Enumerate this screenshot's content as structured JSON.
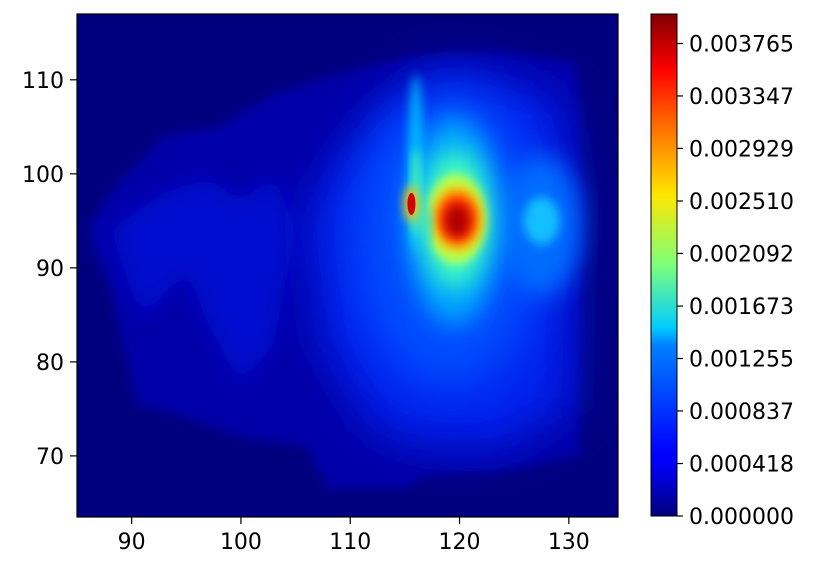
{
  "chart_data": {
    "type": "heatmap",
    "subtype": "filled-contour",
    "colormap": "jet",
    "title": "",
    "xlabel": "",
    "ylabel": "",
    "xlim": [
      85,
      134.5
    ],
    "ylim": [
      63.5,
      117
    ],
    "x_ticks": [
      90,
      100,
      110,
      120,
      130
    ],
    "y_ticks": [
      70,
      80,
      90,
      100,
      110
    ],
    "x_tick_labels": [
      "90",
      "100",
      "110",
      "120",
      "130"
    ],
    "y_tick_labels": [
      "70",
      "80",
      "90",
      "100",
      "110"
    ],
    "colorbar": {
      "min": 0.0,
      "max": 0.004,
      "ticks": [
        0.0,
        0.000418,
        0.000837,
        0.001255,
        0.001673,
        0.002092,
        0.00251,
        0.002929,
        0.003347,
        0.003765
      ],
      "tick_labels": [
        "0.000000",
        "0.000418",
        "0.000837",
        "0.001255",
        "0.001673",
        "0.002092",
        "0.002510",
        "0.002929",
        "0.003347",
        "0.003765"
      ]
    },
    "data_extent": {
      "x": [
        86,
        131
      ],
      "y": [
        66.5,
        113
      ]
    },
    "peaks": [
      {
        "x": 119.8,
        "y": 95.2,
        "value": 0.004
      },
      {
        "x": 115.5,
        "y": 96.8,
        "value": 0.0035
      },
      {
        "x": 127.5,
        "y": 94.5,
        "value": 0.0013
      },
      {
        "x": 101.0,
        "y": 93.0,
        "value": 0.0004
      },
      {
        "x": 92.0,
        "y": 93.0,
        "value": 0.0003
      }
    ]
  }
}
